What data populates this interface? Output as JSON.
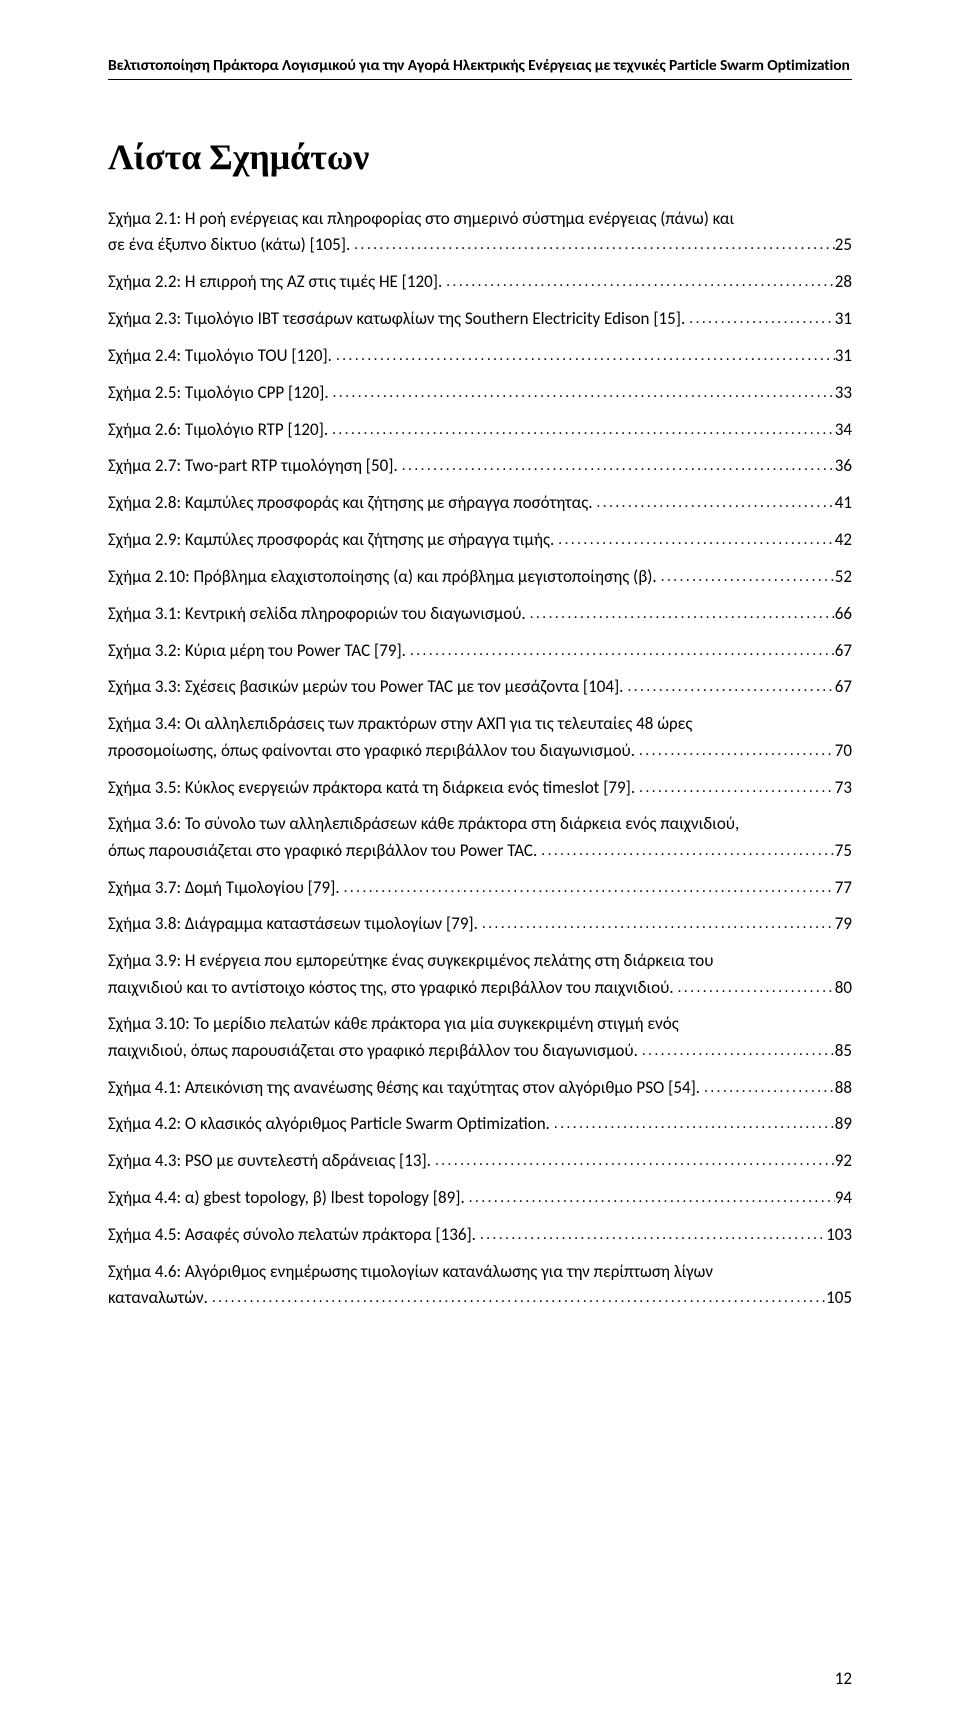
{
  "header": "Βελτιστοποίηση Πράκτορα Λογισμικού για την Αγορά Ηλεκτρικής Ενέργειας με τεχνικές Particle Swarm Optimization",
  "title": "Λίστα Σχημάτων",
  "entries": [
    {
      "multiline": true,
      "line1": "Σχήμα 2.1: Η ροή ενέργειας και πληροφορίας στο σημερινό σύστημα ενέργειας (πάνω) και",
      "tail": "σε ένα έξυπνο δίκτυο (κάτω) [105].",
      "page": "25"
    },
    {
      "text": "Σχήμα 2.2: Η επιρροή της ΑΖ στις τιμές ΗΕ [120].",
      "page": "28"
    },
    {
      "text": "Σχήμα 2.3: Τιμολόγιο IBT τεσσάρων κατωφλίων της Southern Electricity Edison [15].",
      "page": "31"
    },
    {
      "text": "Σχήμα 2.4: Τιμολόγιο TOU [120].",
      "page": "31"
    },
    {
      "text": "Σχήμα 2.5: Τιμολόγιο CPP [120].",
      "page": "33"
    },
    {
      "text": "Σχήμα 2.6: Τιμολόγιο RTP [120].",
      "page": "34"
    },
    {
      "text": "Σχήμα 2.7: Two-part RTP τιμολόγηση [50].",
      "page": "36"
    },
    {
      "text": "Σχήμα 2.8: Καμπύλες προσφοράς και ζήτησης με σήραγγα ποσότητας.",
      "page": "41"
    },
    {
      "text": "Σχήμα 2.9: Καμπύλες προσφοράς και ζήτησης με σήραγγα τιμής.",
      "page": "42"
    },
    {
      "text": "Σχήμα 2.10: Πρόβλημα ελαχιστοποίησης (α) και πρόβλημα μεγιστοποίησης (β).",
      "page": "52"
    },
    {
      "text": "Σχήμα 3.1: Κεντρική σελίδα πληροφοριών του διαγωνισμού.",
      "page": "66"
    },
    {
      "text": "Σχήμα 3.2: Κύρια μέρη του Power TAC [79].",
      "page": "67"
    },
    {
      "text": "Σχήμα 3.3: Σχέσεις βασικών μερών του Power TAC με τον μεσάζοντα [104].",
      "page": "67"
    },
    {
      "multiline": true,
      "line1": "Σχήμα 3.4: Οι αλληλεπιδράσεις των πρακτόρων στην ΑΧΠ για τις τελευταίες 48 ώρες",
      "tail": "προσομοίωσης, όπως φαίνονται στο γραφικό περιβάλλον του διαγωνισμού.",
      "page": "70"
    },
    {
      "text": "Σχήμα 3.5: Κύκλος ενεργειών πράκτορα κατά τη διάρκεια ενός timeslot [79].",
      "page": "73"
    },
    {
      "multiline": true,
      "line1": "Σχήμα 3.6: Το σύνολο των αλληλεπιδράσεων κάθε πράκτορα στη διάρκεια ενός παιχνιδιού,",
      "tail": "όπως παρουσιάζεται στο γραφικό περιβάλλον του Power TAC.",
      "page": "75"
    },
    {
      "text": "Σχήμα 3.7: Δομή Τιμολογίου [79].",
      "page": "77"
    },
    {
      "text": "Σχήμα 3.8: Διάγραμμα καταστάσεων τιμολογίων [79].",
      "page": "79"
    },
    {
      "multiline": true,
      "line1": "Σχήμα 3.9: Η ενέργεια που εμπορεύτηκε ένας συγκεκριμένος πελάτης στη διάρκεια του",
      "tail": "παιχνιδιού και το αντίστοιχο κόστος της, στο γραφικό περιβάλλον του παιχνιδιού.",
      "page": "80"
    },
    {
      "multiline": true,
      "line1": "Σχήμα 3.10: Το μερίδιο πελατών κάθε πράκτορα για μία συγκεκριμένη στιγμή ενός",
      "tail": "παιχνιδιού, όπως παρουσιάζεται στο γραφικό περιβάλλον του διαγωνισμού.",
      "page": "85"
    },
    {
      "text": "Σχήμα 4.1: Απεικόνιση της ανανέωσης θέσης και ταχύτητας στον αλγόριθμο PSO [54].",
      "page": "88"
    },
    {
      "text": "Σχήμα 4.2: Ο κλασικός αλγόριθμος Particle Swarm Optimization.",
      "page": "89"
    },
    {
      "text": "Σχήμα 4.3: PSO με συντελεστή αδράνειας [13].",
      "page": "92"
    },
    {
      "text": "Σχήμα 4.4: α) gbest topology, β) lbest topology [89].",
      "page": "94"
    },
    {
      "text": "Σχήμα 4.5: Ασαφές σύνολο πελατών πράκτορα [136].",
      "page": "103"
    },
    {
      "multiline": true,
      "line1": "Σχήμα 4.6: Αλγόριθμος ενημέρωσης τιμολογίων κατανάλωσης για την περίπτωση λίγων",
      "tail": "καταναλωτών.",
      "page": "105"
    }
  ],
  "footer_page": "12",
  "colors": {
    "text": "#000000",
    "background": "#ffffff",
    "rule": "#000000"
  },
  "typography": {
    "body_fontsize_pt": 12,
    "title_fontsize_pt": 26,
    "header_fontsize_pt": 11
  }
}
